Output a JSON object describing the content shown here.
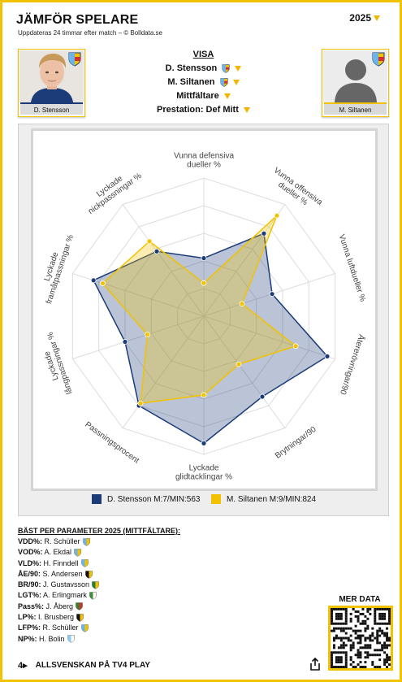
{
  "header": {
    "title": "JÄMFÖR SPELARE",
    "subtitle": "Uppdateras 24 timmar efter match – © Bolldata.se",
    "season": "2025"
  },
  "players": [
    {
      "name": "D. Stensson"
    },
    {
      "name": "M. Siltanen"
    }
  ],
  "selectors": {
    "visa": "VISA",
    "player1": "D. Stensson",
    "player2": "M. Siltanen",
    "position": "Mittfältare",
    "performance": "Prestation: Def Mitt"
  },
  "colors": {
    "accent": "#f2c200",
    "series1": "#1b3c78",
    "series2": "#f2c200"
  },
  "chart_data": {
    "type": "radar",
    "axes": [
      "Vunna defensiva dueller %",
      "Vunna offensiva dueller %",
      "Vunna luftdueller %",
      "Återerövringar/90",
      "Brytningar/90",
      "Lyckade glidtacklingar %",
      "Passningsprocent",
      "Lyckade långpassningar %",
      "Lyckade framåtpassningar %",
      "Lyckade nickpassningar %"
    ],
    "axis_label_lines": [
      [
        "Vunna defensiva",
        "dueller %"
      ],
      [
        "Vunna offensiva",
        "dueller %"
      ],
      [
        "Vunna luftdueller %"
      ],
      [
        "Återerövringar/90"
      ],
      [
        "Brytningar/90"
      ],
      [
        "Lyckade",
        "glidtacklingar %"
      ],
      [
        "Passningsprocent"
      ],
      [
        "Lyckade",
        "långpassningar %"
      ],
      [
        "Lyckade",
        "framåtpassningar %"
      ],
      [
        "Lyckade",
        "nickpassningar %"
      ]
    ],
    "scale_max": 100,
    "rings": 5,
    "series": [
      {
        "name": "D. Stensson M:7/MIN:563",
        "color": "#1b3c78",
        "values": [
          42,
          74,
          52,
          94,
          72,
          92,
          80,
          60,
          84,
          58
        ]
      },
      {
        "name": "M. Siltanen M:9/MIN:824",
        "color": "#f2c200",
        "values": [
          24,
          90,
          29,
          70,
          43,
          57,
          78,
          43,
          77,
          67
        ]
      }
    ]
  },
  "best": {
    "heading": "BÄST PER PARAMETER 2025 (MITTFÄLTARE):",
    "rows": [
      {
        "param": "VDD%:",
        "player": "R. Schüller",
        "badge": "djurgarden"
      },
      {
        "param": "VOD%:",
        "player": "A. Ekdal",
        "badge": "djurgarden"
      },
      {
        "param": "VLD%:",
        "player": "H. Finndell",
        "badge": "djurgarden"
      },
      {
        "param": "ÅE/90:",
        "player": "S. Andersen",
        "badge": "black-yellow"
      },
      {
        "param": "BR/90:",
        "player": "J. Gustavsson",
        "badge": "green-yellow"
      },
      {
        "param": "LGT%:",
        "player": "A. Erlingmark",
        "badge": "green-white"
      },
      {
        "param": "Pass%:",
        "player": "J. Åberg",
        "badge": "green-red"
      },
      {
        "param": "LP%:",
        "player": "I. Brusberg",
        "badge": "black-yellow"
      },
      {
        "param": "LFP%:",
        "player": "R. Schüller",
        "badge": "djurgarden"
      },
      {
        "param": "NP%:",
        "player": "H. Bolin",
        "badge": "sky-blue"
      }
    ]
  },
  "footer": {
    "tv4": "4▸",
    "label": "ALLSVENSKAN PÅ TV4 PLAY",
    "more_data": "MER DATA",
    "share_icon": "share-icon",
    "qr_icon": "qr-code"
  }
}
